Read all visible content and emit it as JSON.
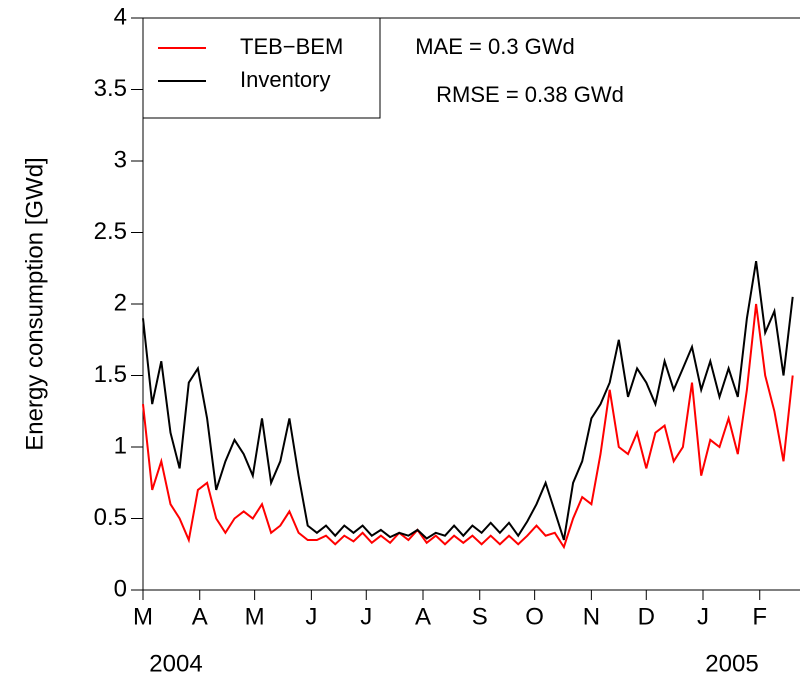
{
  "chart_data": {
    "type": "line",
    "ylabel": "Energy consumption [GWd]",
    "annotations": [
      "MAE   = 0.3 GWd",
      "RMSE = 0.38 GWd",
      "2004",
      "2005"
    ],
    "legend": "upper left",
    "xlim": [
      0,
      359
    ],
    "xticks": [
      {
        "value": 0,
        "label": "M"
      },
      {
        "value": 31,
        "label": "A"
      },
      {
        "value": 61,
        "label": "M"
      },
      {
        "value": 92,
        "label": "J"
      },
      {
        "value": 122,
        "label": "J"
      },
      {
        "value": 153,
        "label": "A"
      },
      {
        "value": 184,
        "label": "S"
      },
      {
        "value": 214,
        "label": "O"
      },
      {
        "value": 245,
        "label": "N"
      },
      {
        "value": 275,
        "label": "D"
      },
      {
        "value": 306,
        "label": "J"
      },
      {
        "value": 337,
        "label": "F"
      }
    ],
    "ylim": [
      0,
      4
    ],
    "yticks": [
      0,
      0.5,
      1,
      1.5,
      2,
      2.5,
      3,
      3.5,
      4
    ],
    "x": [
      0,
      5,
      10,
      15,
      20,
      25,
      30,
      35,
      40,
      45,
      50,
      55,
      60,
      65,
      70,
      75,
      80,
      85,
      90,
      95,
      100,
      105,
      110,
      115,
      120,
      125,
      130,
      135,
      140,
      145,
      150,
      155,
      160,
      165,
      170,
      175,
      180,
      185,
      190,
      195,
      200,
      205,
      210,
      215,
      220,
      225,
      230,
      235,
      240,
      245,
      250,
      255,
      260,
      265,
      270,
      275,
      280,
      285,
      290,
      295,
      300,
      305,
      310,
      315,
      320,
      325,
      330,
      335,
      340,
      345,
      350,
      355
    ],
    "series": [
      {
        "name": "TEB−BEM",
        "color": "#ff0000",
        "values": [
          1.3,
          0.7,
          0.9,
          0.6,
          0.5,
          0.35,
          0.7,
          0.75,
          0.5,
          0.4,
          0.5,
          0.55,
          0.5,
          0.6,
          0.4,
          0.45,
          0.55,
          0.4,
          0.35,
          0.35,
          0.38,
          0.32,
          0.38,
          0.34,
          0.4,
          0.33,
          0.38,
          0.33,
          0.4,
          0.35,
          0.42,
          0.33,
          0.38,
          0.32,
          0.38,
          0.33,
          0.38,
          0.32,
          0.38,
          0.32,
          0.38,
          0.32,
          0.38,
          0.45,
          0.38,
          0.4,
          0.3,
          0.5,
          0.65,
          0.6,
          0.95,
          1.4,
          1.0,
          0.95,
          1.1,
          0.85,
          1.1,
          1.15,
          0.9,
          1.0,
          1.45,
          0.8,
          1.05,
          1.0,
          1.2,
          0.95,
          1.4,
          2.0,
          1.5,
          1.25,
          0.9,
          1.5
        ]
      },
      {
        "name": "Inventory",
        "color": "#000000",
        "values": [
          1.9,
          1.3,
          1.6,
          1.1,
          0.85,
          1.45,
          1.55,
          1.2,
          0.7,
          0.9,
          1.05,
          0.95,
          0.8,
          1.2,
          0.75,
          0.9,
          1.2,
          0.8,
          0.45,
          0.4,
          0.45,
          0.38,
          0.45,
          0.4,
          0.45,
          0.38,
          0.42,
          0.37,
          0.4,
          0.38,
          0.42,
          0.36,
          0.4,
          0.38,
          0.45,
          0.38,
          0.45,
          0.4,
          0.47,
          0.4,
          0.47,
          0.38,
          0.48,
          0.6,
          0.75,
          0.55,
          0.35,
          0.75,
          0.9,
          1.2,
          1.3,
          1.45,
          1.75,
          1.35,
          1.55,
          1.45,
          1.3,
          1.6,
          1.4,
          1.55,
          1.7,
          1.4,
          1.6,
          1.35,
          1.55,
          1.35,
          1.9,
          2.3,
          1.8,
          1.95,
          1.5,
          2.05
        ]
      }
    ]
  }
}
